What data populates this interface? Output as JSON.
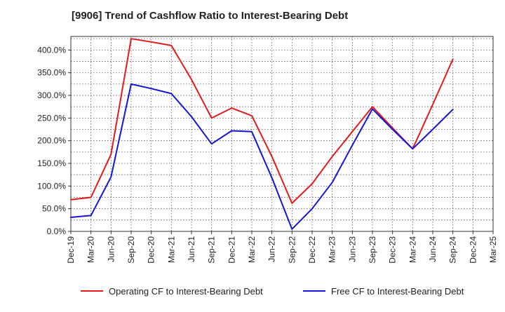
{
  "chart_data": {
    "type": "line",
    "title": "[9906]  Trend of Cashflow Ratio to Interest-Bearing Debt",
    "xlabel": "",
    "ylabel": "",
    "ylim": [
      0,
      430
    ],
    "y_ticks": [
      "0.0%",
      "50.0%",
      "100.0%",
      "150.0%",
      "200.0%",
      "250.0%",
      "300.0%",
      "350.0%",
      "400.0%"
    ],
    "y_tick_values": [
      0,
      50,
      100,
      150,
      200,
      250,
      300,
      350,
      400
    ],
    "categories": [
      "Dec-19",
      "Mar-20",
      "Jun-20",
      "Sep-20",
      "Dec-20",
      "Mar-21",
      "Jun-21",
      "Sep-21",
      "Dec-21",
      "Mar-22",
      "Jun-22",
      "Sep-22",
      "Dec-22",
      "Mar-23",
      "Jun-23",
      "Sep-23",
      "Dec-23",
      "Mar-24",
      "Jun-24",
      "Sep-24",
      "Dec-24",
      "Mar-25"
    ],
    "grid": true,
    "legend_position": "bottom",
    "series": [
      {
        "name": "Operating CF to Interest-Bearing Debt",
        "color": "#e31a1c",
        "values": [
          70,
          75,
          170,
          425,
          418,
          410,
          335,
          250,
          272,
          255,
          165,
          62,
          105,
          165,
          220,
          275,
          228,
          182,
          280,
          380,
          null,
          null
        ]
      },
      {
        "name": "Free CF to Interest-Bearing Debt",
        "color": "#1515d6",
        "values": [
          31,
          35,
          120,
          325,
          315,
          304,
          253,
          193,
          222,
          220,
          118,
          5,
          50,
          108,
          190,
          270,
          225,
          182,
          225,
          269,
          null,
          null
        ]
      }
    ]
  }
}
